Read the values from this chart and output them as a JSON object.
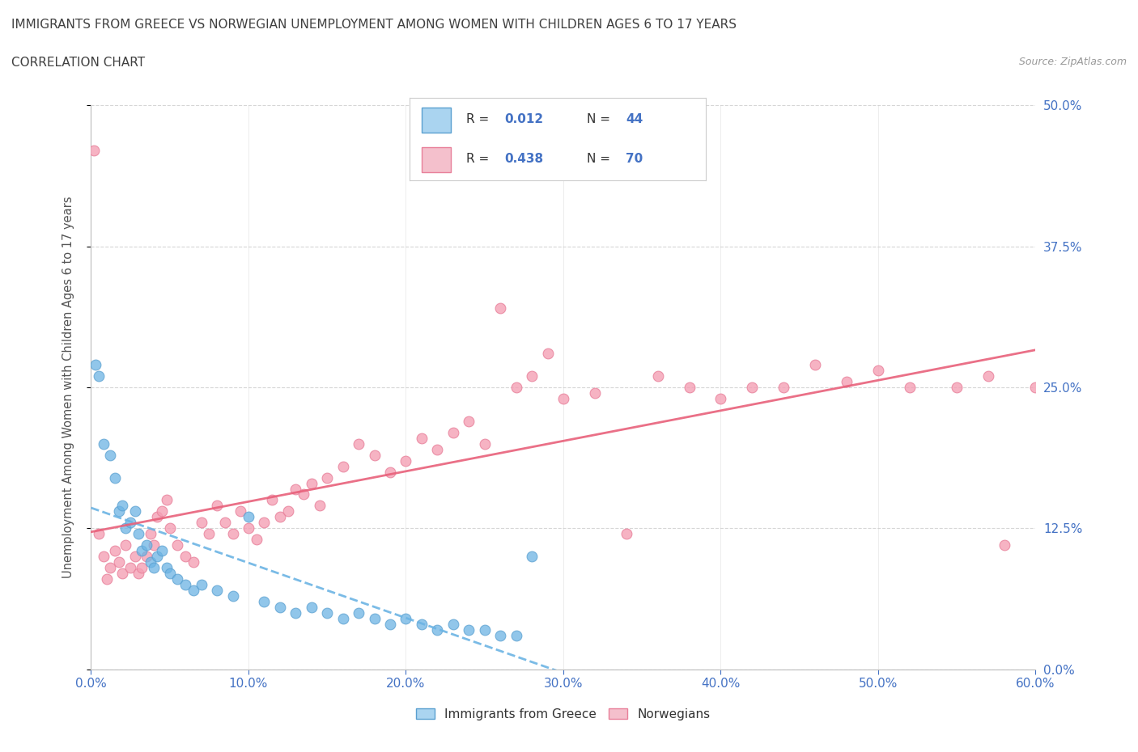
{
  "title": "IMMIGRANTS FROM GREECE VS NORWEGIAN UNEMPLOYMENT AMONG WOMEN WITH CHILDREN AGES 6 TO 17 YEARS",
  "subtitle": "CORRELATION CHART",
  "source": "Source: ZipAtlas.com",
  "ylabel_label": "Unemployment Among Women with Children Ages 6 to 17 years",
  "legend_r1": "R = 0.012",
  "legend_n1": "N = 44",
  "legend_r2": "R = 0.438",
  "legend_n2": "N = 70",
  "color_blue": "#6cb4e4",
  "color_blue_edge": "#5aa0d0",
  "color_pink": "#f4a0b5",
  "color_pink_edge": "#e8809a",
  "color_blue_line": "#6cb4e4",
  "color_pink_line": "#e8607a",
  "color_grid": "#cccccc",
  "color_title": "#404040",
  "color_tick_labels": "#4472c4",
  "scatter_blue_x": [
    0.3,
    0.5,
    0.8,
    1.2,
    1.5,
    1.8,
    2.0,
    2.2,
    2.5,
    2.8,
    3.0,
    3.2,
    3.5,
    3.8,
    4.0,
    4.2,
    4.5,
    4.8,
    5.0,
    5.5,
    6.0,
    6.5,
    7.0,
    8.0,
    9.0,
    10.0,
    11.0,
    12.0,
    13.0,
    14.0,
    15.0,
    16.0,
    17.0,
    18.0,
    19.0,
    20.0,
    21.0,
    22.0,
    23.0,
    24.0,
    25.0,
    26.0,
    27.0,
    28.0
  ],
  "scatter_blue_y": [
    27.0,
    26.0,
    20.0,
    19.0,
    17.0,
    14.0,
    14.5,
    12.5,
    13.0,
    14.0,
    12.0,
    10.5,
    11.0,
    9.5,
    9.0,
    10.0,
    10.5,
    9.0,
    8.5,
    8.0,
    7.5,
    7.0,
    7.5,
    7.0,
    6.5,
    13.5,
    6.0,
    5.5,
    5.0,
    5.5,
    5.0,
    4.5,
    5.0,
    4.5,
    4.0,
    4.5,
    4.0,
    3.5,
    4.0,
    3.5,
    3.5,
    3.0,
    3.0,
    10.0
  ],
  "scatter_pink_x": [
    0.2,
    0.5,
    0.8,
    1.0,
    1.2,
    1.5,
    1.8,
    2.0,
    2.2,
    2.5,
    2.8,
    3.0,
    3.2,
    3.5,
    3.8,
    4.0,
    4.2,
    4.5,
    4.8,
    5.0,
    5.5,
    6.0,
    6.5,
    7.0,
    7.5,
    8.0,
    8.5,
    9.0,
    9.5,
    10.0,
    10.5,
    11.0,
    11.5,
    12.0,
    12.5,
    13.0,
    13.5,
    14.0,
    14.5,
    15.0,
    16.0,
    17.0,
    18.0,
    19.0,
    20.0,
    21.0,
    22.0,
    23.0,
    24.0,
    25.0,
    26.0,
    27.0,
    28.0,
    29.0,
    30.0,
    32.0,
    34.0,
    36.0,
    38.0,
    40.0,
    42.0,
    44.0,
    46.0,
    48.0,
    50.0,
    52.0,
    55.0,
    57.0,
    58.0,
    60.0
  ],
  "scatter_pink_y": [
    46.0,
    12.0,
    10.0,
    8.0,
    9.0,
    10.5,
    9.5,
    8.5,
    11.0,
    9.0,
    10.0,
    8.5,
    9.0,
    10.0,
    12.0,
    11.0,
    13.5,
    14.0,
    15.0,
    12.5,
    11.0,
    10.0,
    9.5,
    13.0,
    12.0,
    14.5,
    13.0,
    12.0,
    14.0,
    12.5,
    11.5,
    13.0,
    15.0,
    13.5,
    14.0,
    16.0,
    15.5,
    16.5,
    14.5,
    17.0,
    18.0,
    20.0,
    19.0,
    17.5,
    18.5,
    20.5,
    19.5,
    21.0,
    22.0,
    20.0,
    32.0,
    25.0,
    26.0,
    28.0,
    24.0,
    24.5,
    12.0,
    26.0,
    25.0,
    24.0,
    25.0,
    25.0,
    27.0,
    25.5,
    26.5,
    25.0,
    25.0,
    26.0,
    11.0,
    25.0
  ],
  "xlim": [
    0,
    60
  ],
  "ylim": [
    0,
    50
  ],
  "xtick_vals": [
    0,
    10,
    20,
    30,
    40,
    50,
    60
  ],
  "ytick_vals": [
    0,
    12.5,
    25,
    37.5,
    50
  ],
  "ytick_labels": [
    "0.0%",
    "12.5%",
    "25.0%",
    "37.5%",
    "50.0%"
  ],
  "xtick_labels": [
    "0.0%",
    "10.0%",
    "20.0%",
    "30.0%",
    "40.0%",
    "50.0%",
    "60.0%"
  ],
  "figsize": [
    14.06,
    9.3
  ],
  "dpi": 100
}
